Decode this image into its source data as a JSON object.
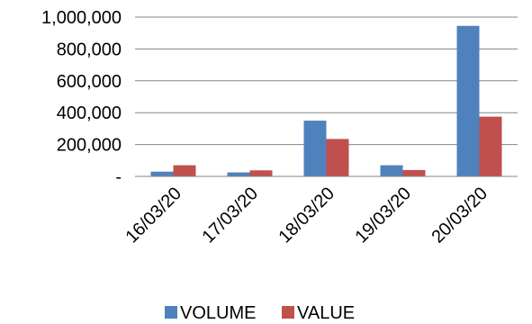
{
  "chart_data": {
    "type": "bar",
    "categories": [
      "16/03/20",
      "17/03/20",
      "18/03/20",
      "19/03/20",
      "20/03/20"
    ],
    "series": [
      {
        "name": "VOLUME",
        "color": "#4f81bd",
        "values": [
          30000,
          25000,
          350000,
          70000,
          945000
        ]
      },
      {
        "name": "VALUE",
        "color": "#c0504d",
        "values": [
          70000,
          38000,
          235000,
          40000,
          375000
        ]
      }
    ],
    "ylim": [
      0,
      1000000
    ],
    "yticks": [
      0,
      200000,
      400000,
      600000,
      800000,
      1000000
    ],
    "ytick_labels": [
      "-",
      "200,000",
      "400,000",
      "600,000",
      "800,000",
      "1,000,000"
    ],
    "grid": true,
    "legend_position": "bottom"
  }
}
